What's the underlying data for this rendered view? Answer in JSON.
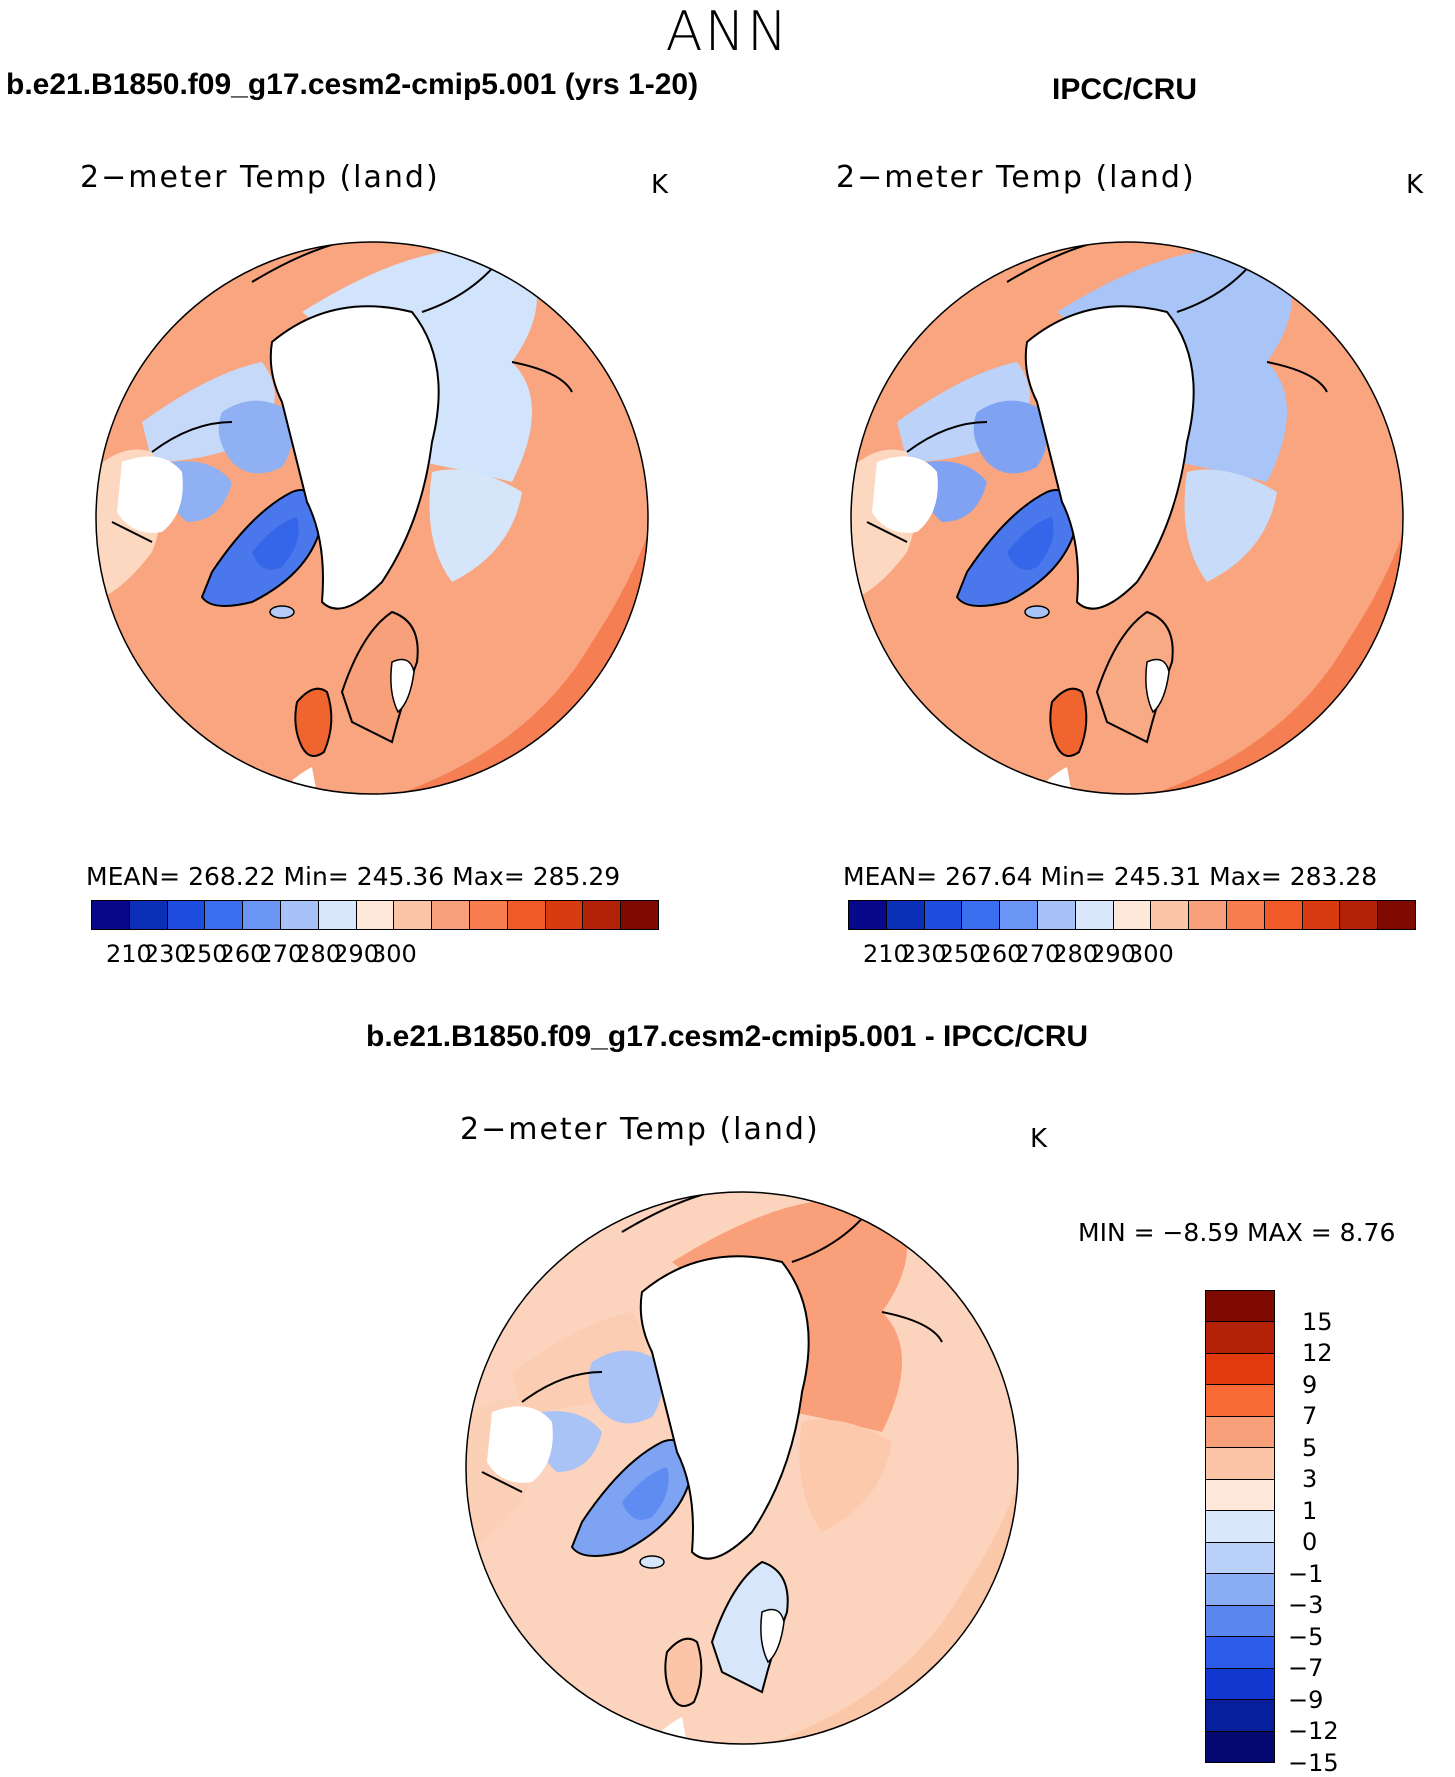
{
  "title": "ANN",
  "panels": {
    "model": {
      "case_title": "b.e21.B1850.f09_g17.cesm2-cmip5.001 (yrs 1-20)",
      "plot_title": "2−meter Temp (land)",
      "unit": "K",
      "stats": "MEAN=  268.22    Min=  245.36     Max=  285.29"
    },
    "obs": {
      "case_title": "IPCC/CRU",
      "plot_title": "2−meter Temp (land)",
      "unit": "K",
      "stats": "MEAN=  267.64    Min=  245.31     Max=  283.28"
    },
    "diff": {
      "case_title": "b.e21.B1850.f09_g17.cesm2-cmip5.001 - IPCC/CRU",
      "plot_title": "2−meter Temp (land)",
      "unit": "K",
      "stats": "MIN =    −8.59  MAX =      8.76"
    }
  },
  "abs_colorbar": {
    "colors": [
      "#08088a",
      "#0c2fb8",
      "#1f4de0",
      "#3b6ff0",
      "#6a95f5",
      "#a6c2f7",
      "#d8e8fa",
      "#fde8d9",
      "#fcc5a7",
      "#f9a07a",
      "#f77d50",
      "#f05a28",
      "#d93a10",
      "#b32206",
      "#7f0a02"
    ],
    "labels": [
      "210",
      "230",
      "250",
      "260",
      "270",
      "280",
      "290",
      "300"
    ]
  },
  "diff_colorbar": {
    "colors": [
      "#7f0a02",
      "#b32206",
      "#e23a0c",
      "#f76a35",
      "#f9a07a",
      "#fcc5a7",
      "#fde8d9",
      "#d8e8fa",
      "#b9d0f8",
      "#8aaef5",
      "#5a86f0",
      "#2d5cea",
      "#1138d0",
      "#081f9c",
      "#050870"
    ],
    "labels": [
      "15",
      "12",
      "9",
      "7",
      "5",
      "3",
      "1",
      "0",
      "−1",
      "−3",
      "−5",
      "−7",
      "−9",
      "−12",
      "−15"
    ]
  }
}
